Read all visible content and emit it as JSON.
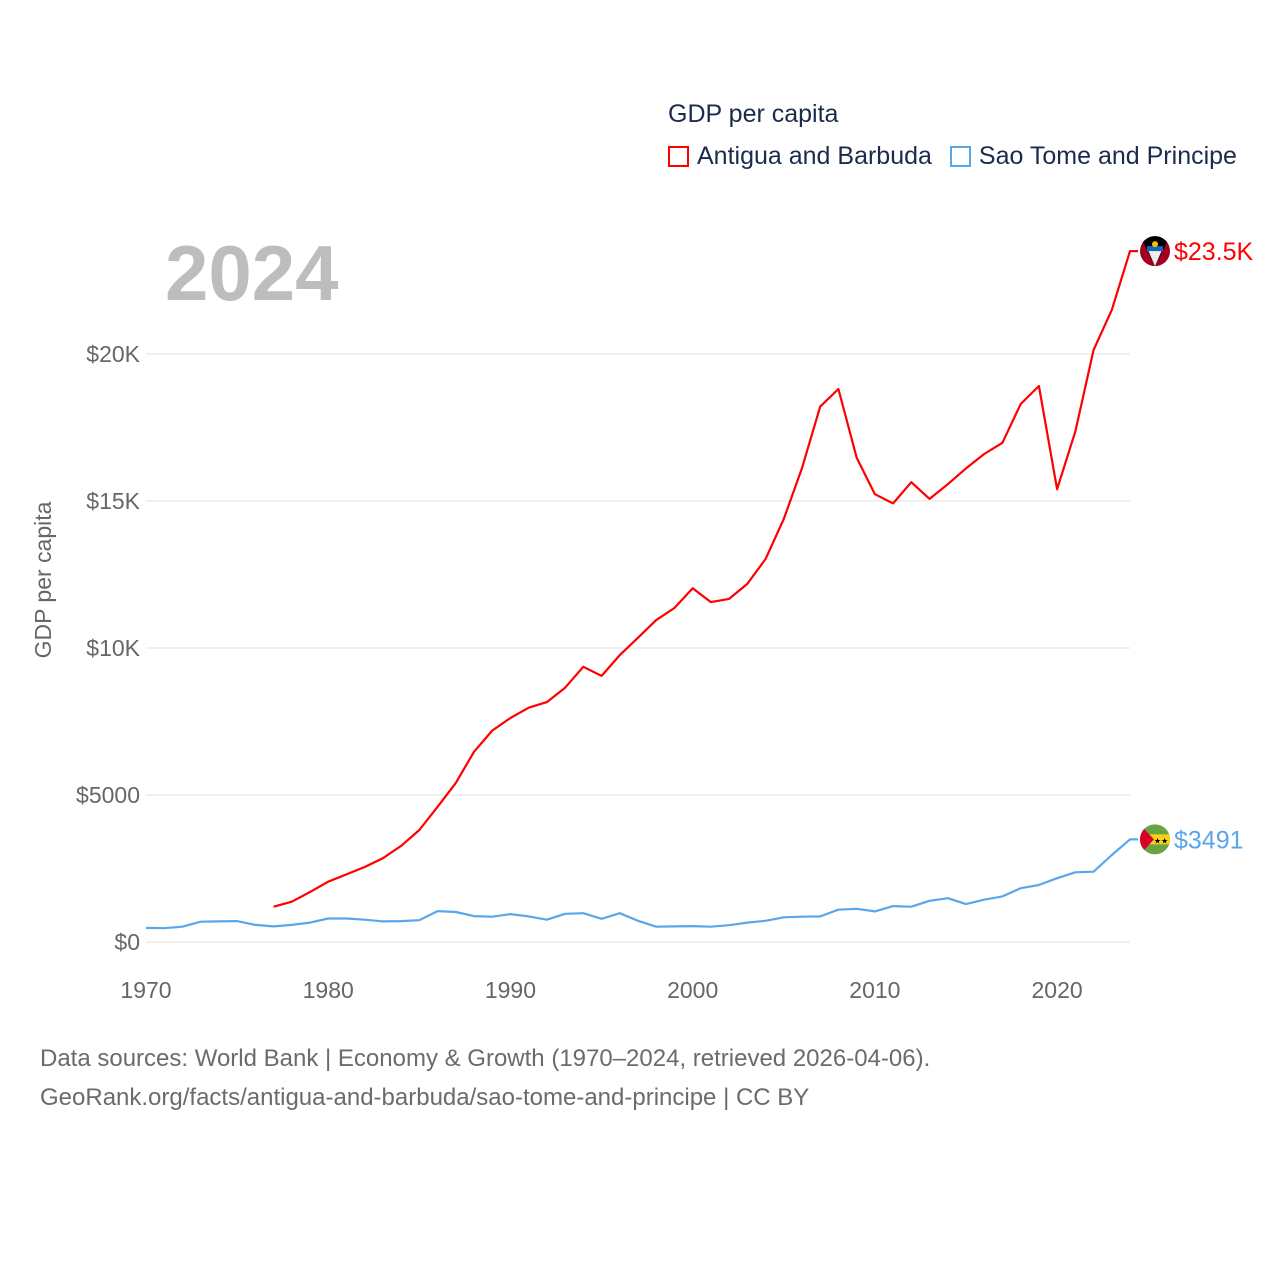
{
  "chart_data": {
    "type": "line",
    "title": "GDP per capita",
    "year_label": "2024",
    "ylabel": "GDP per capita",
    "xlabel": "",
    "xlim": [
      1970,
      2024
    ],
    "ylim": [
      0,
      24000
    ],
    "x_ticks": [
      1970,
      1980,
      1990,
      2000,
      2010,
      2020
    ],
    "x_tick_labels": [
      "1970",
      "1980",
      "1990",
      "2000",
      "2010",
      "2020"
    ],
    "y_ticks": [
      0,
      5000,
      10000,
      15000,
      20000
    ],
    "y_tick_labels": [
      "$0",
      "$5000",
      "$10K",
      "$15K",
      "$20K"
    ],
    "grid": true,
    "legend_position": "top-right",
    "series": [
      {
        "name": "Antigua and Barbuda",
        "color": "#ff0000",
        "end_label": "$23.5K",
        "x": [
          1977,
          1978,
          1979,
          1980,
          1981,
          1982,
          1983,
          1984,
          1985,
          1986,
          1987,
          1988,
          1989,
          1990,
          1991,
          1992,
          1993,
          1994,
          1995,
          1996,
          1997,
          1998,
          1999,
          2000,
          2001,
          2002,
          2003,
          2004,
          2005,
          2006,
          2007,
          2008,
          2009,
          2010,
          2011,
          2012,
          2013,
          2014,
          2015,
          2016,
          2017,
          2018,
          2019,
          2020,
          2021,
          2022,
          2023,
          2024
        ],
        "values": [
          1200,
          1370,
          1700,
          2050,
          2300,
          2550,
          2850,
          3270,
          3810,
          4600,
          5410,
          6470,
          7190,
          7620,
          7970,
          8160,
          8650,
          9360,
          9050,
          9760,
          10350,
          10950,
          11360,
          12030,
          11560,
          11670,
          12180,
          13030,
          14390,
          16120,
          18210,
          18810,
          16470,
          15230,
          14920,
          15640,
          15070,
          15570,
          16110,
          16600,
          16980,
          18300,
          18910,
          15400,
          17360,
          20140,
          21500,
          23500
        ]
      },
      {
        "name": "Sao Tome and Principe",
        "color": "#5aa6ea",
        "end_label": "$3491",
        "x": [
          1970,
          1971,
          1972,
          1973,
          1974,
          1975,
          1976,
          1977,
          1978,
          1979,
          1980,
          1981,
          1982,
          1983,
          1984,
          1985,
          1986,
          1987,
          1988,
          1989,
          1990,
          1991,
          1992,
          1993,
          1994,
          1995,
          1996,
          1997,
          1998,
          1999,
          2000,
          2001,
          2002,
          2003,
          2004,
          2005,
          2006,
          2007,
          2008,
          2009,
          2010,
          2011,
          2012,
          2013,
          2014,
          2015,
          2016,
          2017,
          2018,
          2019,
          2020,
          2021,
          2022,
          2023,
          2024
        ],
        "values": [
          480,
          470,
          520,
          690,
          700,
          710,
          580,
          530,
          580,
          660,
          800,
          800,
          760,
          700,
          710,
          740,
          1050,
          1020,
          880,
          860,
          950,
          870,
          760,
          960,
          980,
          790,
          980,
          720,
          520,
          530,
          540,
          520,
          570,
          660,
          720,
          840,
          860,
          870,
          1100,
          1130,
          1040,
          1220,
          1200,
          1400,
          1490,
          1290,
          1440,
          1550,
          1830,
          1940,
          2170,
          2370,
          2390,
          2960,
          3491
        ]
      }
    ],
    "footer": {
      "line1": "Data sources: World Bank | Economy & Growth (1970–2024, retrieved 2026-04-06).",
      "line2": "GeoRank.org/facts/antigua-and-barbuda/sao-tome-and-principe | CC BY"
    }
  }
}
